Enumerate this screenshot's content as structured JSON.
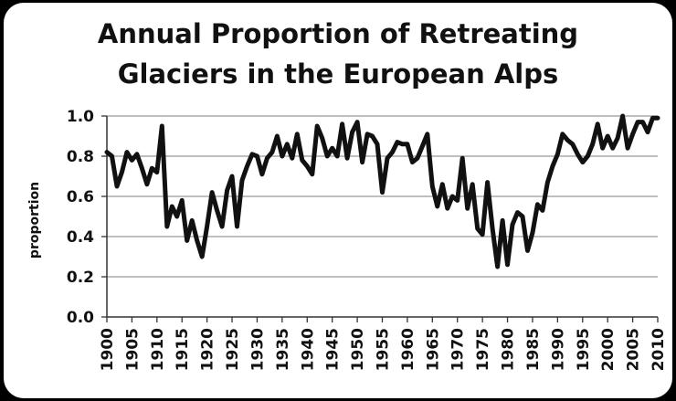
{
  "chart_data": {
    "type": "line",
    "title_lines": [
      "Annual Proportion of Retreating",
      "Glaciers in the European Alps"
    ],
    "ylabel": "proportion",
    "xlabel": "",
    "ylim": [
      0,
      1.0
    ],
    "xlim": [
      1900,
      2010
    ],
    "y_ticks": [
      "0.0",
      "0.2",
      "0.4",
      "0.6",
      "0.8",
      "1.0"
    ],
    "x_ticks": [
      "1900",
      "1905",
      "1910",
      "1915",
      "1920",
      "1925",
      "1930",
      "1935",
      "1940",
      "1945",
      "1950",
      "1955",
      "1960",
      "1965",
      "1970",
      "1975",
      "1980",
      "1985",
      "1990",
      "1995",
      "2000",
      "2005",
      "2010"
    ],
    "grid": true,
    "line_color": "#111111",
    "grid_color": "#999999",
    "series": [
      {
        "x": [
          1900,
          1901,
          1902,
          1903,
          1904,
          1905,
          1906,
          1907,
          1908,
          1909,
          1910,
          1911,
          1912,
          1913,
          1914,
          1915,
          1916,
          1917,
          1918,
          1919,
          1920,
          1921,
          1922,
          1923,
          1924,
          1925,
          1926,
          1927,
          1928,
          1929,
          1930,
          1931,
          1932,
          1933,
          1934,
          1935,
          1936,
          1937,
          1938,
          1939,
          1940,
          1941,
          1942,
          1943,
          1944,
          1945,
          1946,
          1947,
          1948,
          1949,
          1950,
          1951,
          1952,
          1953,
          1954,
          1955,
          1956,
          1957,
          1958,
          1959,
          1960,
          1961,
          1962,
          1963,
          1964,
          1965,
          1966,
          1967,
          1968,
          1969,
          1970,
          1971,
          1972,
          1973,
          1974,
          1975,
          1976,
          1977,
          1978,
          1979,
          1980,
          1981,
          1982,
          1983,
          1984,
          1985,
          1986,
          1987,
          1988,
          1989,
          1990,
          1991,
          1992,
          1993,
          1994,
          1995,
          1996,
          1997,
          1998,
          1999,
          2000,
          2001,
          2002,
          2003,
          2004,
          2005,
          2006,
          2007,
          2008,
          2009,
          2010
        ],
        "y": [
          0.82,
          0.8,
          0.65,
          0.72,
          0.82,
          0.78,
          0.81,
          0.74,
          0.66,
          0.74,
          0.72,
          0.95,
          0.45,
          0.55,
          0.5,
          0.58,
          0.38,
          0.48,
          0.38,
          0.3,
          0.45,
          0.62,
          0.53,
          0.45,
          0.63,
          0.7,
          0.45,
          0.68,
          0.75,
          0.81,
          0.8,
          0.71,
          0.79,
          0.82,
          0.9,
          0.8,
          0.86,
          0.79,
          0.91,
          0.78,
          0.75,
          0.71,
          0.95,
          0.89,
          0.8,
          0.84,
          0.8,
          0.96,
          0.79,
          0.92,
          0.97,
          0.77,
          0.91,
          0.9,
          0.86,
          0.62,
          0.79,
          0.82,
          0.87,
          0.86,
          0.86,
          0.77,
          0.79,
          0.85,
          0.91,
          0.65,
          0.55,
          0.66,
          0.54,
          0.6,
          0.58,
          0.79,
          0.54,
          0.66,
          0.44,
          0.41,
          0.67,
          0.44,
          0.25,
          0.48,
          0.26,
          0.46,
          0.52,
          0.5,
          0.33,
          0.42,
          0.56,
          0.53,
          0.67,
          0.75,
          0.81,
          0.91,
          0.88,
          0.86,
          0.81,
          0.77,
          0.8,
          0.86,
          0.96,
          0.84,
          0.9,
          0.84,
          0.89,
          1.0,
          0.84,
          0.91,
          0.97,
          0.97,
          0.92,
          0.99,
          0.99
        ]
      }
    ]
  }
}
